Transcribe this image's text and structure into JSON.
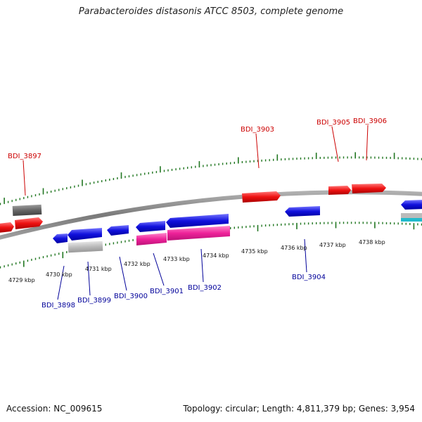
{
  "title": "Parabacteroides distasonis ATCC 8503, complete genome",
  "footer": {
    "accession": "Accession: NC_009615",
    "summary": "Topology: circular; Length: 4,811,379 bp; Genes: 3,954"
  },
  "colors": {
    "forward_gene": "#ee1111",
    "reverse_gene": "#1111dd",
    "rna_gene": "#ee2299",
    "pseudo_forward": "#666666",
    "pseudo_reverse": "#bbbbbb",
    "other": "#22bbcc",
    "tick": "#227722",
    "backbone": "#8a8a8a"
  },
  "scale_labels": [
    "4729 kbp",
    "4730 kbp",
    "4731 kbp",
    "4732 kbp",
    "4733 kbp",
    "4734 kbp",
    "4735 kbp",
    "4736 kbp",
    "4737 kbp",
    "4738 kbp"
  ],
  "gene_labels": [
    {
      "text": "BDI_3897",
      "strand": "forward"
    },
    {
      "text": "BDI_3903",
      "strand": "forward"
    },
    {
      "text": "BDI_3905",
      "strand": "forward"
    },
    {
      "text": "BDI_3906",
      "strand": "forward"
    },
    {
      "text": "BDI_3898",
      "strand": "reverse"
    },
    {
      "text": "BDI_3899",
      "strand": "reverse"
    },
    {
      "text": "BDI_3900",
      "strand": "reverse"
    },
    {
      "text": "BDI_3901",
      "strand": "reverse"
    },
    {
      "text": "BDI_3902",
      "strand": "reverse"
    },
    {
      "text": "BDI_3904",
      "strand": "reverse"
    }
  ]
}
